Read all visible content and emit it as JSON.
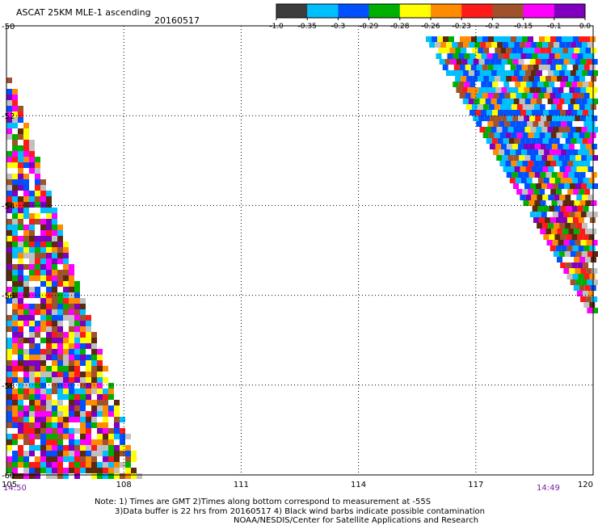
{
  "header": {
    "title": "ASCAT 25KM MLE-1 ascending",
    "date": "20160517"
  },
  "colorbar": {
    "labels": [
      "-1.0",
      "-0.35",
      "-0.3",
      "-0.29",
      "-0.28",
      "-0.26",
      "-0.23",
      "-0.2",
      "-0.15",
      "-0.1",
      "0.0"
    ],
    "colors": [
      "#3c3c3c",
      "#00bfff",
      "#0050ff",
      "#00b000",
      "#ffff00",
      "#ff8c00",
      "#ff1a1a",
      "#a0522d",
      "#ff00ff",
      "#8000c0"
    ]
  },
  "axes": {
    "x_ticks": [
      "105",
      "108",
      "111",
      "114",
      "117",
      "120"
    ],
    "y_ticks": [
      "-50",
      "-52",
      "-54",
      "-56",
      "-58",
      "-60"
    ],
    "time_left": "14:50",
    "time_right": "14:49"
  },
  "notes": {
    "line1": "Note: 1) Times are GMT 2)Times along bottom correspond to measurement at -55S",
    "line2": "3)Data buffer is 22 hrs from 20160517 4) Black wind barbs indicate possible contamination",
    "line3": "NOAA/NESDIS/Center for Satellite Applications and Research"
  }
}
